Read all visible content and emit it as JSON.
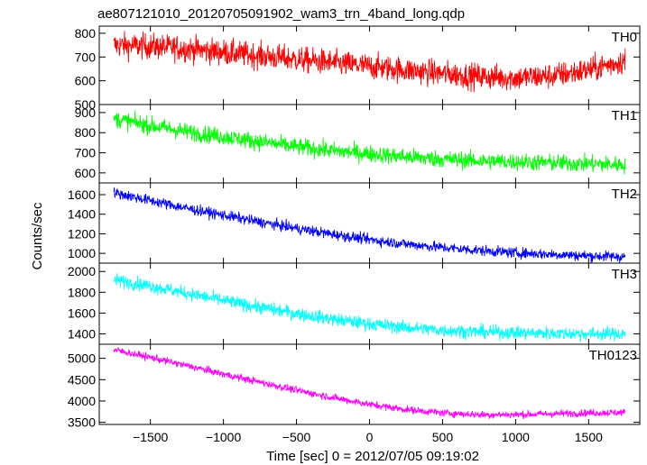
{
  "chart_data": {
    "type": "line",
    "title": "ae807121010_20120705091902_wam3_trn_4band_long.qdp",
    "xlabel": "Time [sec] 0 = 2012/07/05 09:19:02",
    "ylabel": "Counts/sec",
    "xlim": [
      -1850,
      1850
    ],
    "xticks": [
      -1500,
      -1000,
      -500,
      0,
      500,
      1000,
      1500
    ],
    "xtick_labels": [
      "−1500",
      "−1000",
      "−500",
      "0",
      "500",
      "1000",
      "1500"
    ],
    "grid": false,
    "x": [
      -1750,
      -1500,
      -1250,
      -1000,
      -750,
      -500,
      -250,
      0,
      250,
      500,
      750,
      1000,
      1250,
      1500,
      1750
    ],
    "panels": [
      {
        "name": "TH0",
        "color": "#ff0000",
        "ylim": [
          500,
          830
        ],
        "yticks": [
          500,
          600,
          700,
          800
        ],
        "noise": 38,
        "values": [
          750,
          745,
          735,
          720,
          705,
          690,
          675,
          660,
          645,
          630,
          618,
          612,
          620,
          645,
          685
        ]
      },
      {
        "name": "TH1",
        "color": "#00ff00",
        "ylim": [
          550,
          940
        ],
        "yticks": [
          600,
          700,
          800,
          900
        ],
        "noise": 30,
        "values": [
          870,
          835,
          805,
          780,
          755,
          730,
          710,
          695,
          680,
          668,
          660,
          655,
          650,
          645,
          640
        ]
      },
      {
        "name": "TH2",
        "color": "#0000ff",
        "ylim": [
          900,
          1720
        ],
        "yticks": [
          1000,
          1200,
          1400,
          1600
        ],
        "noise": 38,
        "values": [
          1620,
          1540,
          1460,
          1390,
          1320,
          1255,
          1195,
          1140,
          1095,
          1060,
          1030,
          1005,
          990,
          975,
          965
        ]
      },
      {
        "name": "TH3",
        "color": "#00ffff",
        "ylim": [
          1300,
          2080
        ],
        "yticks": [
          1400,
          1600,
          1800,
          2000
        ],
        "noise": 45,
        "values": [
          1920,
          1860,
          1790,
          1720,
          1655,
          1595,
          1540,
          1495,
          1460,
          1435,
          1420,
          1410,
          1405,
          1400,
          1400
        ]
      },
      {
        "name": "TH0123",
        "color": "#ff00ff",
        "ylim": [
          3450,
          5330
        ],
        "yticks": [
          3500,
          4000,
          4500,
          5000
        ],
        "noise": 60,
        "values": [
          5200,
          5020,
          4830,
          4630,
          4440,
          4250,
          4080,
          3920,
          3800,
          3720,
          3680,
          3680,
          3700,
          3720,
          3730
        ]
      }
    ]
  }
}
